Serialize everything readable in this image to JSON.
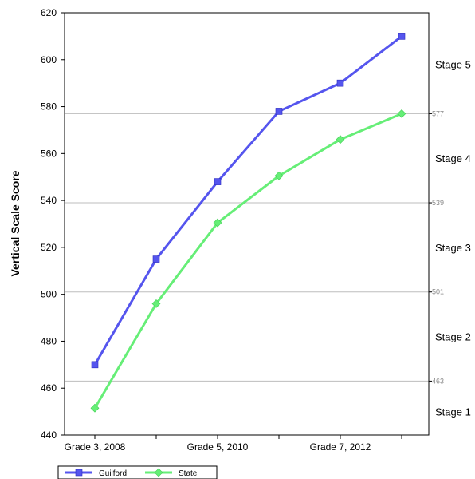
{
  "chart_data": {
    "type": "line",
    "title": "",
    "ylabel": "Vertical Scale Score",
    "xlabel": "",
    "ylim": [
      440,
      620
    ],
    "yticks": [
      "440",
      "460",
      "480",
      "500",
      "520",
      "540",
      "560",
      "580",
      "600",
      "620"
    ],
    "categories": [
      "Grade 3, 2008",
      "",
      "Grade 5, 2010",
      "",
      "Grade 7, 2012",
      ""
    ],
    "series": [
      {
        "name": "Guilford",
        "color": "#5555ee",
        "marker": "square",
        "values": [
          470,
          515,
          548,
          578,
          590,
          610
        ]
      },
      {
        "name": "State",
        "color": "#66ee77",
        "marker": "diamond",
        "values": [
          451.5,
          496,
          530.5,
          550.5,
          566,
          577
        ]
      }
    ],
    "thresholds": [
      {
        "label": "577",
        "value": 577
      },
      {
        "label": "539",
        "value": 539
      },
      {
        "label": "501",
        "value": 501
      },
      {
        "label": "463",
        "value": 463
      }
    ],
    "stages": [
      {
        "label": "Stage 5",
        "value": 598
      },
      {
        "label": "Stage 4",
        "value": 558
      },
      {
        "label": "Stage 3",
        "value": 520
      },
      {
        "label": "Stage 2",
        "value": 482
      },
      {
        "label": "Stage 1",
        "value": 450
      }
    ],
    "legend_position": "bottom-left",
    "grid": false
  }
}
